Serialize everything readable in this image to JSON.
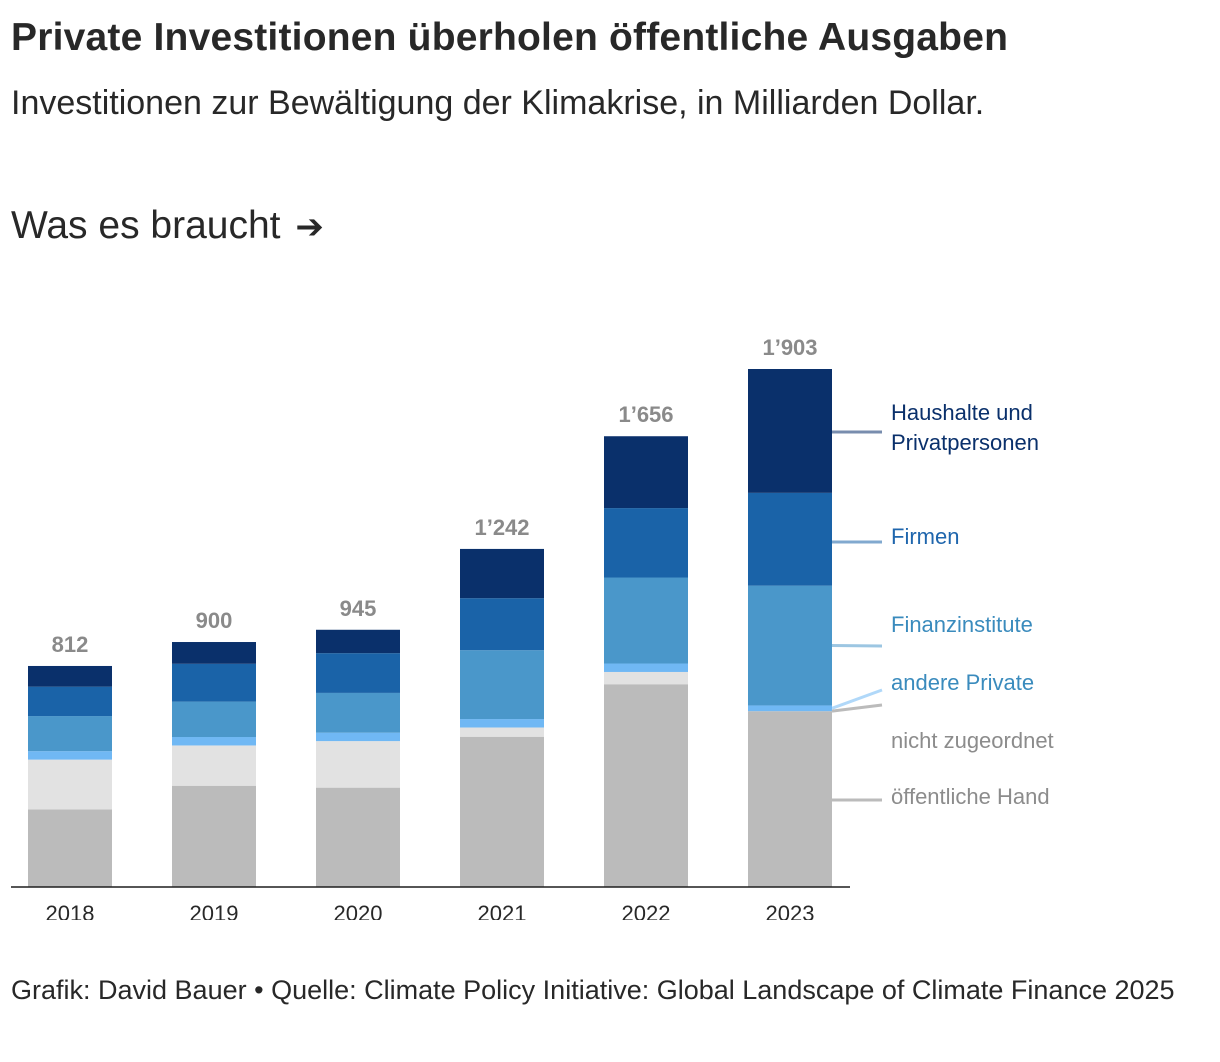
{
  "title": "Private Investitionen überholen öffentliche Ausgaben",
  "subtitle": "Investitionen zur Bewältigung der Klimakrise, in Milliarden Dollar.",
  "link": {
    "label": "Was es braucht",
    "icon": "arrow-right-icon"
  },
  "chart_data": {
    "type": "bar",
    "stacked": true,
    "categories": [
      "2018",
      "2019",
      "2020",
      "2021",
      "2022",
      "2023"
    ],
    "totals": [
      812,
      900,
      945,
      1242,
      1656,
      1903
    ],
    "total_labels": [
      "812",
      "900",
      "945",
      "1’242",
      "1’656",
      "1’903"
    ],
    "ylim": [
      0,
      1903
    ],
    "grid": false,
    "series": [
      {
        "name": "öffentliche Hand",
        "color": "#bbbbbb",
        "label_color": "#8c8c8c",
        "values": [
          285,
          372,
          365,
          552,
          745,
          646
        ]
      },
      {
        "name": "nicht zugeordnet",
        "color": "#e2e2e2",
        "label_color": "#8c8c8c",
        "values": [
          183,
          148,
          171,
          34,
          45,
          0
        ]
      },
      {
        "name": "andere Private",
        "color": "#70b8f4",
        "label_color": "#3a8bbd",
        "values": [
          31,
          31,
          31,
          31,
          31,
          21
        ]
      },
      {
        "name": "Finanzinstitute",
        "color": "#4a97ca",
        "label_color": "#3a8bbd",
        "values": [
          129,
          130,
          146,
          253,
          316,
          440
        ]
      },
      {
        "name": "Firmen",
        "color": "#1a63a8",
        "label_color": "#1f66ad",
        "values": [
          108,
          139,
          146,
          191,
          255,
          341
        ]
      },
      {
        "name": "Haushalte und Privatpersonen",
        "color": "#0a306b",
        "label_color": "#0a306b",
        "values": [
          76,
          80,
          86,
          181,
          264,
          455
        ]
      }
    ],
    "legend_lines": [
      [
        "Haushalte und",
        "Privatpersonen"
      ],
      [
        "Firmen"
      ],
      [
        "Finanzinstitute"
      ],
      [
        "andere Private"
      ],
      [
        "nicht zugeordnet"
      ],
      [
        "öffentliche Hand"
      ]
    ],
    "legend_placement": "right"
  },
  "footer": {
    "credit": "Grafik: David Bauer",
    "separator": "•",
    "source": "Quelle: Climate Policy Initiative: Global Landscape of Climate Finance 2025"
  }
}
